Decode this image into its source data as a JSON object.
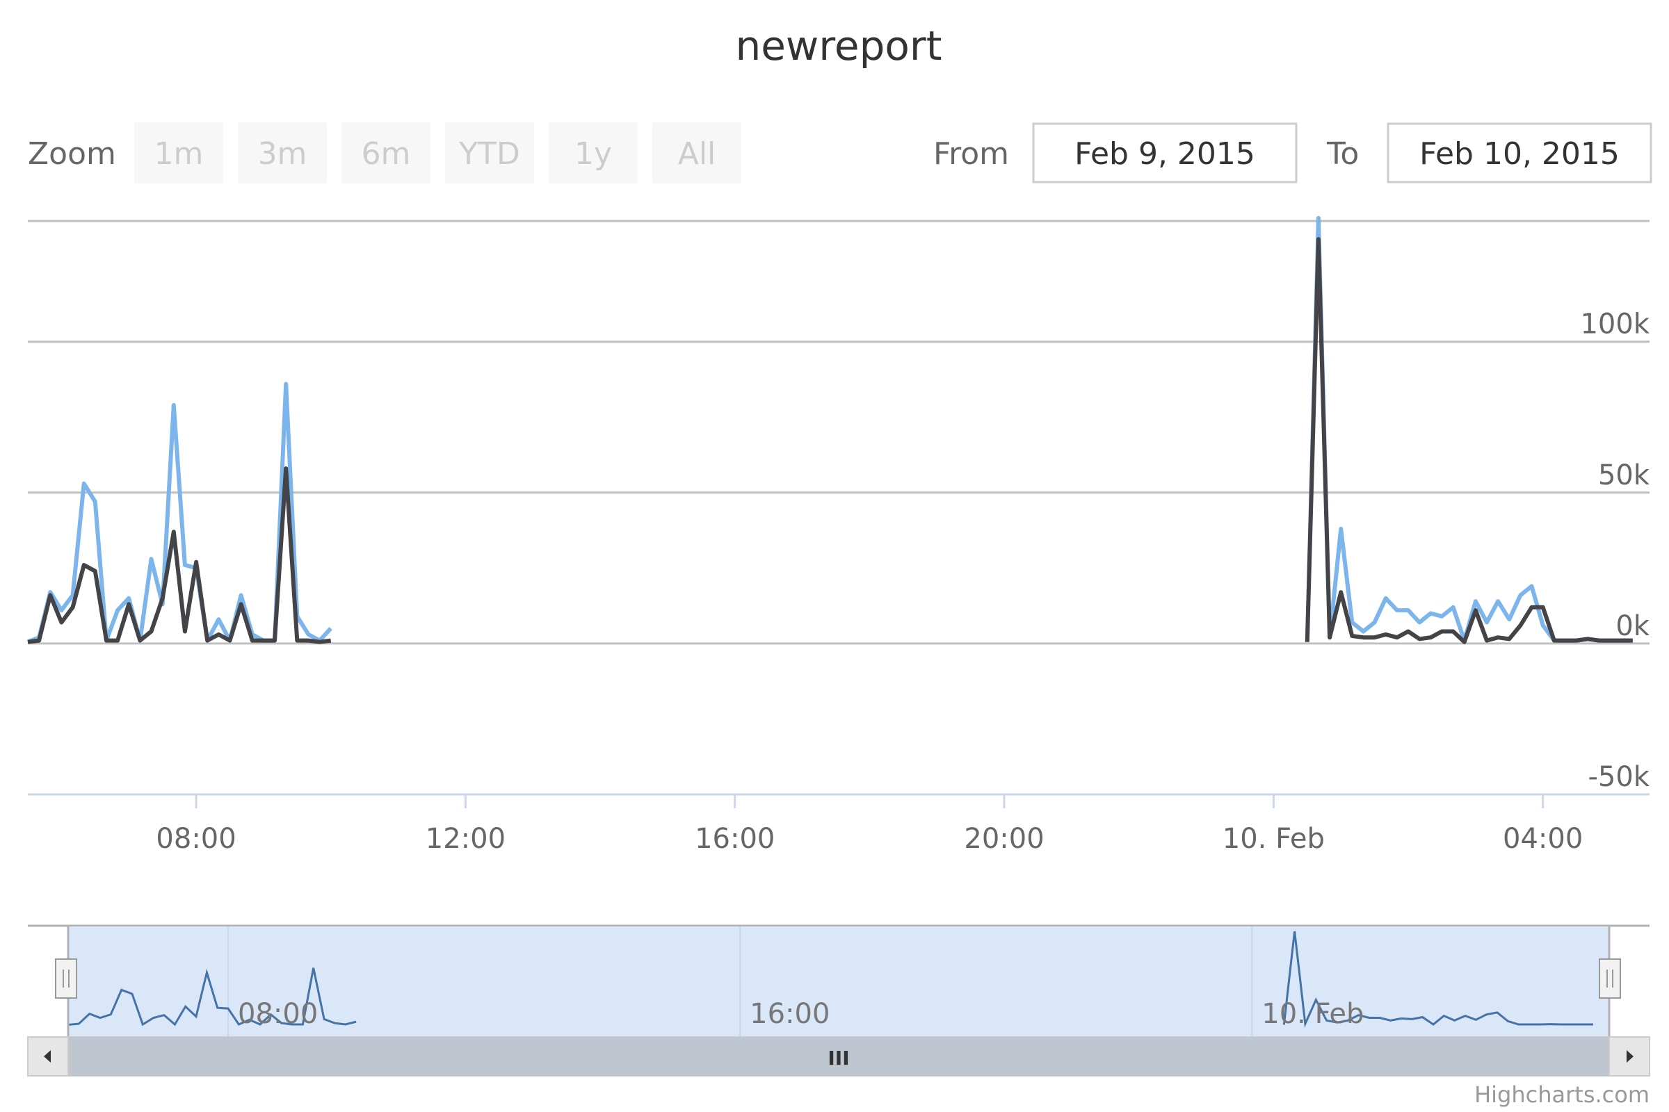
{
  "chart_data": {
    "type": "line",
    "title": "newreport",
    "x_unit": "datetime",
    "x_range": [
      "2015-02-09 05:30",
      "2015-02-10 05:35"
    ],
    "y_range": [
      -50000,
      140000
    ],
    "y_ticks": [
      {
        "label": "100k",
        "value": 100000
      },
      {
        "label": "50k",
        "value": 50000
      },
      {
        "label": "0k",
        "value": 0
      },
      {
        "label": "-50k",
        "value": -50000
      }
    ],
    "x_ticks": [
      {
        "label": "08:00",
        "time": "2015-02-09 08:00"
      },
      {
        "label": "12:00",
        "time": "2015-02-09 12:00"
      },
      {
        "label": "16:00",
        "time": "2015-02-09 16:00"
      },
      {
        "label": "20:00",
        "time": "2015-02-09 20:00"
      },
      {
        "label": "10. Feb",
        "time": "2015-02-10 00:00"
      },
      {
        "label": "04:00",
        "time": "2015-02-10 04:00"
      }
    ],
    "navigator_ticks": [
      {
        "label": "08:00",
        "time": "2015-02-09 08:00"
      },
      {
        "label": "16:00",
        "time": "2015-02-09 16:00"
      },
      {
        "label": "10. Feb",
        "time": "2015-02-10 00:00"
      }
    ],
    "grid": true,
    "legend": "none",
    "series": [
      {
        "color": "#7cb5ec",
        "points": [
          [
            "2015-02-09 05:30",
            500
          ],
          [
            "2015-02-09 05:40",
            2000
          ],
          [
            "2015-02-09 05:50",
            17000
          ],
          [
            "2015-02-09 06:00",
            11000
          ],
          [
            "2015-02-09 06:10",
            16000
          ],
          [
            "2015-02-09 06:20",
            53000
          ],
          [
            "2015-02-09 06:30",
            47000
          ],
          [
            "2015-02-09 06:40",
            1000
          ],
          [
            "2015-02-09 06:50",
            11000
          ],
          [
            "2015-02-09 07:00",
            15000
          ],
          [
            "2015-02-09 07:10",
            1000
          ],
          [
            "2015-02-09 07:20",
            28000
          ],
          [
            "2015-02-09 07:30",
            13000
          ],
          [
            "2015-02-09 07:40",
            79000
          ],
          [
            "2015-02-09 07:50",
            26000
          ],
          [
            "2015-02-09 08:00",
            25000
          ],
          [
            "2015-02-09 08:10",
            1000
          ],
          [
            "2015-02-09 08:20",
            8000
          ],
          [
            "2015-02-09 08:30",
            1000
          ],
          [
            "2015-02-09 08:40",
            16000
          ],
          [
            "2015-02-09 08:50",
            3000
          ],
          [
            "2015-02-09 09:00",
            1000
          ],
          [
            "2015-02-09 09:10",
            1000
          ],
          [
            "2015-02-09 09:20",
            86000
          ],
          [
            "2015-02-09 09:30",
            9000
          ],
          [
            "2015-02-09 09:40",
            3000
          ],
          [
            "2015-02-09 09:50",
            1000
          ],
          [
            "2015-02-09 10:00",
            5000
          ]
        ]
      },
      {
        "color": "#434348",
        "points": [
          [
            "2015-02-09 05:30",
            500
          ],
          [
            "2015-02-09 05:40",
            1000
          ],
          [
            "2015-02-09 05:50",
            16000
          ],
          [
            "2015-02-09 06:00",
            7000
          ],
          [
            "2015-02-09 06:10",
            12000
          ],
          [
            "2015-02-09 06:20",
            26000
          ],
          [
            "2015-02-09 06:30",
            24000
          ],
          [
            "2015-02-09 06:40",
            1000
          ],
          [
            "2015-02-09 06:50",
            1000
          ],
          [
            "2015-02-09 07:00",
            13000
          ],
          [
            "2015-02-09 07:10",
            1000
          ],
          [
            "2015-02-09 07:20",
            4000
          ],
          [
            "2015-02-09 07:30",
            15000
          ],
          [
            "2015-02-09 07:40",
            37000
          ],
          [
            "2015-02-09 07:50",
            4000
          ],
          [
            "2015-02-09 08:00",
            27000
          ],
          [
            "2015-02-09 08:10",
            1000
          ],
          [
            "2015-02-09 08:20",
            3000
          ],
          [
            "2015-02-09 08:30",
            1000
          ],
          [
            "2015-02-09 08:40",
            13000
          ],
          [
            "2015-02-09 08:50",
            1000
          ],
          [
            "2015-02-09 09:00",
            1000
          ],
          [
            "2015-02-09 09:10",
            1000
          ],
          [
            "2015-02-09 09:20",
            58000
          ],
          [
            "2015-02-09 09:30",
            1000
          ],
          [
            "2015-02-09 09:40",
            1000
          ],
          [
            "2015-02-09 09:50",
            500
          ],
          [
            "2015-02-09 10:00",
            1000
          ]
        ]
      },
      {
        "color": "#7cb5ec",
        "points": [
          [
            "2015-02-10 00:30",
            500
          ],
          [
            "2015-02-10 00:40",
            141000
          ],
          [
            "2015-02-10 00:50",
            2000
          ],
          [
            "2015-02-10 01:00",
            38000
          ],
          [
            "2015-02-10 01:10",
            7000
          ],
          [
            "2015-02-10 01:20",
            4000
          ],
          [
            "2015-02-10 01:30",
            7000
          ],
          [
            "2015-02-10 01:40",
            15000
          ],
          [
            "2015-02-10 01:50",
            11000
          ],
          [
            "2015-02-10 02:00",
            11000
          ],
          [
            "2015-02-10 02:10",
            7000
          ],
          [
            "2015-02-10 02:20",
            10000
          ],
          [
            "2015-02-10 02:30",
            9000
          ],
          [
            "2015-02-10 02:40",
            12000
          ],
          [
            "2015-02-10 02:50",
            1000
          ],
          [
            "2015-02-10 03:00",
            14000
          ],
          [
            "2015-02-10 03:10",
            7000
          ],
          [
            "2015-02-10 03:20",
            14000
          ],
          [
            "2015-02-10 03:30",
            8000
          ],
          [
            "2015-02-10 03:40",
            16000
          ],
          [
            "2015-02-10 03:50",
            19000
          ],
          [
            "2015-02-10 04:00",
            6000
          ],
          [
            "2015-02-10 04:10",
            1000
          ],
          [
            "2015-02-10 04:20",
            1000
          ],
          [
            "2015-02-10 04:30",
            1000
          ],
          [
            "2015-02-10 04:40",
            1500
          ],
          [
            "2015-02-10 04:50",
            1000
          ],
          [
            "2015-02-10 05:00",
            1000
          ],
          [
            "2015-02-10 05:10",
            1000
          ],
          [
            "2015-02-10 05:20",
            1000
          ]
        ]
      },
      {
        "color": "#434348",
        "points": [
          [
            "2015-02-10 00:30",
            500
          ],
          [
            "2015-02-10 00:40",
            134000
          ],
          [
            "2015-02-10 00:50",
            2000
          ],
          [
            "2015-02-10 01:00",
            17000
          ],
          [
            "2015-02-10 01:10",
            2500
          ],
          [
            "2015-02-10 01:20",
            2000
          ],
          [
            "2015-02-10 01:30",
            2000
          ],
          [
            "2015-02-10 01:40",
            3000
          ],
          [
            "2015-02-10 01:50",
            2000
          ],
          [
            "2015-02-10 02:00",
            4000
          ],
          [
            "2015-02-10 02:10",
            1500
          ],
          [
            "2015-02-10 02:20",
            2000
          ],
          [
            "2015-02-10 02:30",
            4000
          ],
          [
            "2015-02-10 02:40",
            4000
          ],
          [
            "2015-02-10 02:50",
            500
          ],
          [
            "2015-02-10 03:00",
            11000
          ],
          [
            "2015-02-10 03:10",
            1000
          ],
          [
            "2015-02-10 03:20",
            2000
          ],
          [
            "2015-02-10 03:30",
            1500
          ],
          [
            "2015-02-10 03:40",
            6000
          ],
          [
            "2015-02-10 03:50",
            12000
          ],
          [
            "2015-02-10 04:00",
            12000
          ],
          [
            "2015-02-10 04:10",
            1000
          ],
          [
            "2015-02-10 04:20",
            1000
          ],
          [
            "2015-02-10 04:30",
            1000
          ],
          [
            "2015-02-10 04:40",
            1500
          ],
          [
            "2015-02-10 04:50",
            1000
          ],
          [
            "2015-02-10 05:00",
            1000
          ],
          [
            "2015-02-10 05:10",
            1000
          ],
          [
            "2015-02-10 05:20",
            1000
          ]
        ]
      }
    ]
  },
  "range_selector": {
    "zoom_label": "Zoom",
    "buttons": [
      "1m",
      "3m",
      "6m",
      "YTD",
      "1y",
      "All"
    ],
    "from_label": "From",
    "from_value": "Feb 9, 2015",
    "to_label": "To",
    "to_value": "Feb 10, 2015"
  },
  "navigator": {
    "mask_color": "#d9e7f8",
    "line_color": "#4572a7",
    "selected_fraction": [
      0,
      1
    ],
    "scrollbar_grip": "III"
  },
  "credits": "Highcharts.com",
  "colors": {
    "grid": "#c0c0c0",
    "axis": "#ccd6eb"
  }
}
